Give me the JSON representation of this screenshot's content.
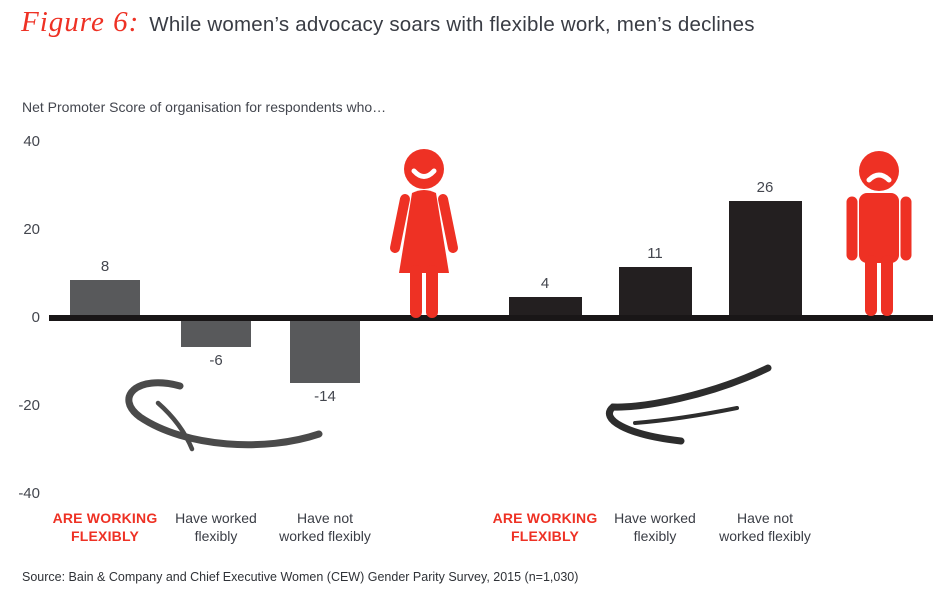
{
  "header": {
    "figure_label": "Figure 6:",
    "title": "While women’s advocacy soars with flexible work, men’s declines"
  },
  "chart_data": {
    "type": "bar",
    "title": "While women’s advocacy soars with flexible work, men’s declines",
    "subtitle": "Net Promoter Score of organisation for respondents who…",
    "xlabel": "",
    "ylabel": "Net Promoter Score",
    "ylim": [
      -40,
      40
    ],
    "yticks": [
      40,
      20,
      0,
      -20,
      -40
    ],
    "grid": false,
    "legend": "none",
    "groups": [
      {
        "name": "women",
        "icon": "woman-icon",
        "icon_mood": "smiling",
        "bar_color": "#58595b",
        "bars": [
          {
            "category": "ARE WORKING\nFLEXIBLY",
            "value": 8,
            "emphasis": true
          },
          {
            "category": "Have worked\nflexibly",
            "value": -6,
            "emphasis": false
          },
          {
            "category": "Have not\nworked flexibly",
            "value": -14,
            "emphasis": false
          }
        ]
      },
      {
        "name": "men",
        "icon": "man-icon",
        "icon_mood": "frowning",
        "bar_color": "#231f20",
        "bars": [
          {
            "category": "ARE WORKING\nFLEXIBLY",
            "value": 4,
            "emphasis": true
          },
          {
            "category": "Have worked\nflexibly",
            "value": 11,
            "emphasis": false
          },
          {
            "category": "Have not\nworked flexibly",
            "value": 26,
            "emphasis": false
          }
        ]
      }
    ],
    "source": "Source: Bain & Company and Chief Executive Women (CEW) Gender Parity Survey, 2015 (n=1,030)"
  },
  "colors": {
    "accent_red": "#ee3124",
    "women_bar": "#58595b",
    "men_bar": "#231f20",
    "axis": "#191617",
    "text_dark": "#43464e"
  }
}
